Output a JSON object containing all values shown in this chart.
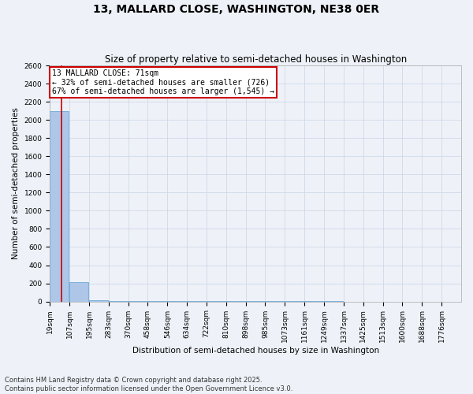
{
  "title": "13, MALLARD CLOSE, WASHINGTON, NE38 0ER",
  "subtitle": "Size of property relative to semi-detached houses in Washington",
  "xlabel": "Distribution of semi-detached houses by size in Washington",
  "ylabel": "Number of semi-detached properties",
  "property_size": 71,
  "property_label": "13 MALLARD CLOSE: 71sqm",
  "pct_smaller": 32,
  "pct_larger": 67,
  "count_smaller": 726,
  "count_larger": "1,545",
  "bin_edges": [
    19,
    107,
    195,
    283,
    370,
    458,
    546,
    634,
    722,
    810,
    898,
    985,
    1073,
    1161,
    1249,
    1337,
    1425,
    1513,
    1600,
    1688,
    1776
  ],
  "bar_heights": [
    2100,
    210,
    15,
    5,
    3,
    2,
    2,
    1,
    1,
    1,
    1,
    1,
    1,
    1,
    1,
    0,
    0,
    0,
    0,
    0
  ],
  "bar_color": "#aec6e8",
  "bar_edge_color": "#5a9fd4",
  "grid_color": "#d0d8e8",
  "annotation_box_color": "#cc0000",
  "vline_color": "#cc0000",
  "ylim": [
    0,
    2600
  ],
  "yticks": [
    0,
    200,
    400,
    600,
    800,
    1000,
    1200,
    1400,
    1600,
    1800,
    2000,
    2200,
    2400,
    2600
  ],
  "footer": "Contains HM Land Registry data © Crown copyright and database right 2025.\nContains public sector information licensed under the Open Government Licence v3.0.",
  "title_fontsize": 10,
  "subtitle_fontsize": 8.5,
  "axis_label_fontsize": 7.5,
  "tick_fontsize": 6.5,
  "annotation_fontsize": 7,
  "footer_fontsize": 6,
  "background_color": "#eef2f8"
}
